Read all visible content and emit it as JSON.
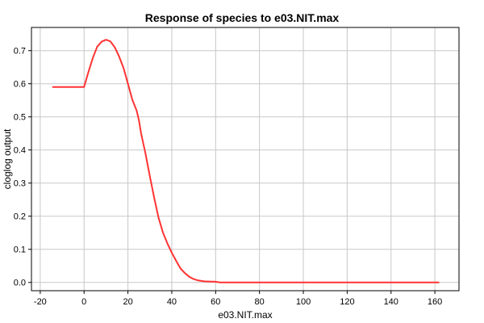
{
  "chart_data": {
    "type": "line",
    "title": "Response of species to e03.NIT.max",
    "xlabel": "e03.NIT.max",
    "ylabel": "cloglog output",
    "xlim": [
      -24,
      171
    ],
    "ylim": [
      -0.025,
      0.77
    ],
    "x_ticks": [
      -20,
      0,
      20,
      40,
      60,
      80,
      100,
      120,
      140,
      160
    ],
    "y_ticks": [
      0.0,
      0.1,
      0.2,
      0.3,
      0.4,
      0.5,
      0.6,
      0.7
    ],
    "x_tick_labels": [
      "-20",
      "0",
      "20",
      "40",
      "60",
      "80",
      "100",
      "120",
      "140",
      "160"
    ],
    "y_tick_labels": [
      "0.0",
      "0.1",
      "0.2",
      "0.3",
      "0.4",
      "0.5",
      "0.6",
      "0.7"
    ],
    "grid": true,
    "legend": "none",
    "colors": {
      "line": "#ff3333",
      "grid": "#c8c8c8",
      "axis": "#000000"
    },
    "series": [
      {
        "x": [
          -14.5,
          -10,
          -5,
          0,
          2,
          4,
          6,
          8,
          10,
          12,
          14,
          16,
          18,
          20,
          22,
          24,
          25,
          26,
          28,
          30,
          32,
          34,
          35,
          36,
          38,
          40,
          42,
          44,
          46,
          48,
          50,
          52,
          55,
          60,
          62,
          70,
          80,
          100,
          120,
          140,
          162
        ],
        "y": [
          0.59,
          0.59,
          0.59,
          0.59,
          0.636,
          0.678,
          0.712,
          0.727,
          0.733,
          0.728,
          0.71,
          0.682,
          0.647,
          0.6,
          0.552,
          0.518,
          0.49,
          0.45,
          0.39,
          0.32,
          0.255,
          0.195,
          0.172,
          0.15,
          0.118,
          0.09,
          0.065,
          0.042,
          0.028,
          0.017,
          0.01,
          0.006,
          0.003,
          0.002,
          0.0,
          0.0,
          0.0,
          0.0,
          0.0,
          0.0,
          0.0
        ]
      }
    ]
  }
}
